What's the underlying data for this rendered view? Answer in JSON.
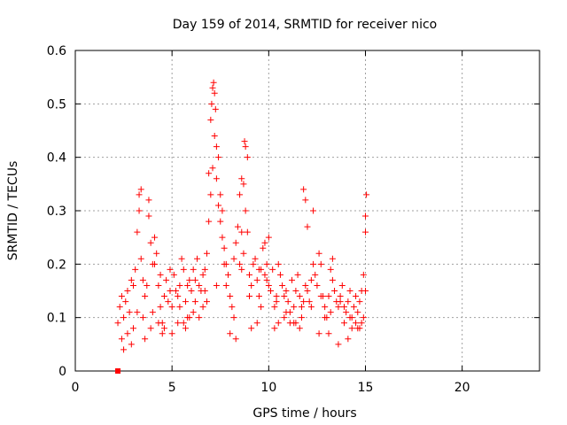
{
  "chart_data": {
    "type": "scatter",
    "title": "Day 159 of 2014, SRMTID for receiver nico",
    "xlabel": "GPS time / hours",
    "ylabel": "SRMTID / TECUs",
    "xlim": [
      0,
      24
    ],
    "ylim": [
      0,
      0.6
    ],
    "x_ticks": [
      0,
      5,
      10,
      15,
      20
    ],
    "y_ticks": [
      0,
      0.1,
      0.2,
      0.3,
      0.4,
      0.5,
      0.6
    ],
    "x_tick_labels": [
      "0",
      "5",
      "10",
      "15",
      "20"
    ],
    "y_tick_labels": [
      "0",
      "0.1",
      "0.2",
      "0.3",
      "0.4",
      "0.5",
      "0.6"
    ],
    "grid": true,
    "marker": "plus",
    "color": "#ff0000",
    "series": [
      {
        "name": "SRMTID",
        "x": [
          2.2,
          2.3,
          2.4,
          2.5,
          2.6,
          2.7,
          2.8,
          2.9,
          3.0,
          3.1,
          3.2,
          3.3,
          3.4,
          3.5,
          3.6,
          3.7,
          3.8,
          3.9,
          4.0,
          4.1,
          4.2,
          4.3,
          4.4,
          4.5,
          4.6,
          4.7,
          4.8,
          4.9,
          5.0,
          5.1,
          5.2,
          5.3,
          5.4,
          5.5,
          5.6,
          5.7,
          5.8,
          5.9,
          6.0,
          6.1,
          6.2,
          6.3,
          6.4,
          6.5,
          6.6,
          6.7,
          6.8,
          6.9,
          7.0,
          7.1,
          7.2,
          7.3,
          7.4,
          7.5,
          7.6,
          7.7,
          7.8,
          7.9,
          8.0,
          8.1,
          8.2,
          8.3,
          8.4,
          8.5,
          8.6,
          8.7,
          8.8,
          8.9,
          9.0,
          9.1,
          9.2,
          9.3,
          9.4,
          9.5,
          9.6,
          9.7,
          9.8,
          9.9,
          10.0,
          10.1,
          10.2,
          10.3,
          10.4,
          10.5,
          10.6,
          10.7,
          10.8,
          10.9,
          11.0,
          11.1,
          11.2,
          11.3,
          11.4,
          11.5,
          11.6,
          11.7,
          11.8,
          11.9,
          12.0,
          12.1,
          12.2,
          12.3,
          12.4,
          12.5,
          12.6,
          12.7,
          12.8,
          12.9,
          13.0,
          13.1,
          13.2,
          13.3,
          13.4,
          13.5,
          13.6,
          13.7,
          13.8,
          13.9,
          14.0,
          14.1,
          14.2,
          14.3,
          14.4,
          14.5,
          14.6,
          14.7,
          14.8,
          14.9,
          15.0,
          2.4,
          2.7,
          3.0,
          3.3,
          3.4,
          3.5,
          3.8,
          3.9,
          4.0,
          4.3,
          4.4,
          4.6,
          5.0,
          5.3,
          5.6,
          5.7,
          5.9,
          6.1,
          6.4,
          6.6,
          6.8,
          6.9,
          7.0,
          7.05,
          7.1,
          7.15,
          7.2,
          7.25,
          7.3,
          7.4,
          7.5,
          7.6,
          7.7,
          8.0,
          8.3,
          8.5,
          8.6,
          8.7,
          8.75,
          8.8,
          8.9,
          9.1,
          9.4,
          9.6,
          9.8,
          10.0,
          10.3,
          10.5,
          10.8,
          11.1,
          11.4,
          11.6,
          11.8,
          11.9,
          12.0,
          12.3,
          12.6,
          12.9,
          13.1,
          13.3,
          13.6,
          13.9,
          14.1,
          14.3,
          14.5,
          14.7,
          14.9,
          15.0,
          15.05,
          2.5,
          2.9,
          3.2,
          3.6,
          4.1,
          4.5,
          4.9,
          5.4,
          5.8,
          6.2,
          6.7,
          7.3,
          7.8,
          8.2,
          8.6,
          9.0,
          9.5,
          9.9,
          10.4,
          10.9,
          11.3,
          11.7,
          12.2,
          12.7,
          13.2,
          13.7,
          14.2,
          14.6,
          14.8,
          15.0
        ],
        "y": [
          0.09,
          0.12,
          0.14,
          0.1,
          0.13,
          0.15,
          0.11,
          0.17,
          0.16,
          0.19,
          0.26,
          0.3,
          0.21,
          0.17,
          0.14,
          0.16,
          0.29,
          0.24,
          0.2,
          0.25,
          0.22,
          0.16,
          0.12,
          0.09,
          0.14,
          0.17,
          0.13,
          0.15,
          0.12,
          0.18,
          0.15,
          0.14,
          0.16,
          0.21,
          0.19,
          0.13,
          0.16,
          0.17,
          0.15,
          0.19,
          0.17,
          0.21,
          0.16,
          0.15,
          0.18,
          0.19,
          0.22,
          0.28,
          0.33,
          0.38,
          0.44,
          0.36,
          0.31,
          0.28,
          0.25,
          0.2,
          0.16,
          0.18,
          0.14,
          0.12,
          0.21,
          0.24,
          0.27,
          0.2,
          0.19,
          0.22,
          0.3,
          0.26,
          0.18,
          0.16,
          0.2,
          0.21,
          0.17,
          0.14,
          0.19,
          0.23,
          0.18,
          0.2,
          0.16,
          0.15,
          0.19,
          0.12,
          0.14,
          0.2,
          0.18,
          0.16,
          0.14,
          0.15,
          0.13,
          0.11,
          0.17,
          0.12,
          0.15,
          0.18,
          0.14,
          0.1,
          0.13,
          0.16,
          0.15,
          0.13,
          0.12,
          0.2,
          0.18,
          0.16,
          0.22,
          0.2,
          0.14,
          0.12,
          0.1,
          0.14,
          0.19,
          0.17,
          0.15,
          0.13,
          0.12,
          0.14,
          0.16,
          0.12,
          0.11,
          0.13,
          0.15,
          0.1,
          0.12,
          0.14,
          0.11,
          0.13,
          0.15,
          0.18,
          0.26,
          0.06,
          0.07,
          0.08,
          0.33,
          0.34,
          0.1,
          0.32,
          0.08,
          0.11,
          0.09,
          0.18,
          0.08,
          0.07,
          0.09,
          0.09,
          0.08,
          0.1,
          0.11,
          0.1,
          0.12,
          0.13,
          0.37,
          0.47,
          0.5,
          0.53,
          0.54,
          0.52,
          0.49,
          0.42,
          0.4,
          0.33,
          0.3,
          0.23,
          0.07,
          0.06,
          0.33,
          0.36,
          0.35,
          0.43,
          0.42,
          0.4,
          0.08,
          0.09,
          0.12,
          0.24,
          0.25,
          0.08,
          0.09,
          0.1,
          0.09,
          0.09,
          0.08,
          0.34,
          0.32,
          0.27,
          0.3,
          0.07,
          0.1,
          0.07,
          0.21,
          0.05,
          0.09,
          0.06,
          0.08,
          0.09,
          0.08,
          0.1,
          0.29,
          0.33,
          0.04,
          0.05,
          0.11,
          0.06,
          0.2,
          0.07,
          0.19,
          0.12,
          0.1,
          0.13,
          0.15,
          0.16,
          0.2,
          0.1,
          0.26,
          0.14,
          0.19,
          0.17,
          0.13,
          0.11,
          0.09,
          0.12,
          0.17,
          0.14,
          0.11,
          0.13,
          0.1,
          0.08,
          0.09,
          0.15
        ]
      },
      {
        "name": "marker",
        "marker": "square",
        "x": [
          2.2
        ],
        "y": [
          0.0
        ]
      }
    ]
  }
}
